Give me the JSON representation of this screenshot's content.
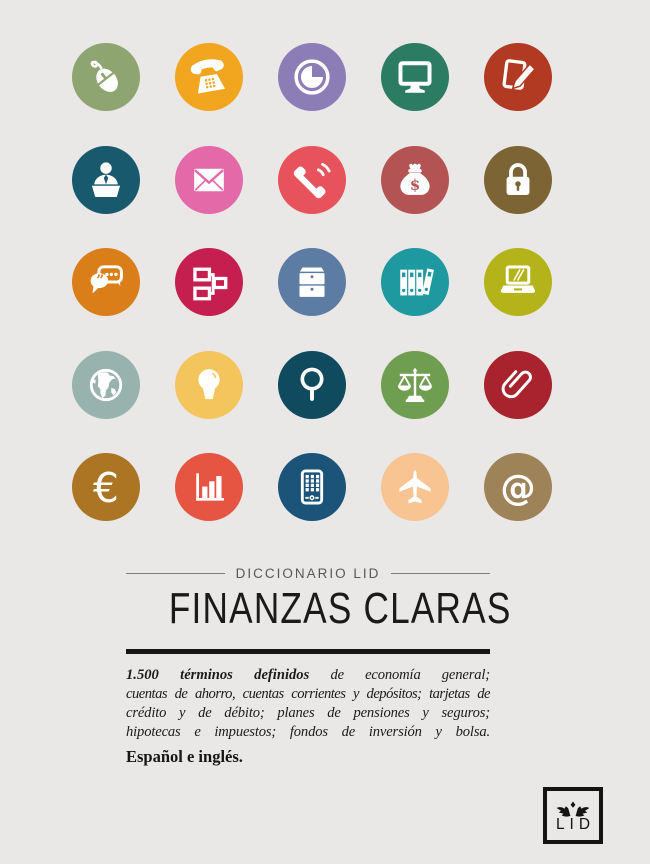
{
  "page": {
    "background_color": "#e9e8e6",
    "rule_color": "#161616",
    "title_color": "#1a1a1a"
  },
  "header": {
    "kicker": "DICCIONARIO LID",
    "title": "FINANZAS CLARAS"
  },
  "description": {
    "lead_bold": "1.500 términos definidos",
    "line1_rest": " de economía general;",
    "line2": "cuentas de ahorro, cuentas corrientes y depósitos; tarjetas de",
    "line3": "crédito y de débito; planes de pensiones y seguros;",
    "line4": "hipotecas e impuestos; fondos de inversión y bolsa.",
    "languages": "Español e inglés."
  },
  "publisher": {
    "logo_text": "LID"
  },
  "icon_grid": {
    "rows": [
      [
        {
          "name": "mouse-icon",
          "color": "#8ea571"
        },
        {
          "name": "telephone-icon",
          "color": "#f2a51e"
        },
        {
          "name": "clock-icon",
          "color": "#8d7db6"
        },
        {
          "name": "monitor-icon",
          "color": "#2c7b63"
        },
        {
          "name": "edit-document-icon",
          "color": "#b33a22"
        }
      ],
      [
        {
          "name": "speaker-podium-icon",
          "color": "#19596d"
        },
        {
          "name": "envelope-icon",
          "color": "#e369a9"
        },
        {
          "name": "ringing-phone-icon",
          "color": "#e7525c"
        },
        {
          "name": "money-bag-icon",
          "color": "#b35354"
        },
        {
          "name": "padlock-icon",
          "color": "#7d6435"
        }
      ],
      [
        {
          "name": "chat-bubbles-icon",
          "color": "#d97e18"
        },
        {
          "name": "org-chart-icon",
          "color": "#c51f50"
        },
        {
          "name": "drawers-icon",
          "color": "#5c7ca3"
        },
        {
          "name": "binders-icon",
          "color": "#1f99a0"
        },
        {
          "name": "laptop-icon",
          "color": "#b4b319"
        }
      ],
      [
        {
          "name": "globe-icon",
          "color": "#98b2ae"
        },
        {
          "name": "lightbulb-icon",
          "color": "#f4c55d"
        },
        {
          "name": "magnifier-icon",
          "color": "#0f4a5f"
        },
        {
          "name": "scales-icon",
          "color": "#709e50"
        },
        {
          "name": "paperclip-icon",
          "color": "#a8232e"
        }
      ],
      [
        {
          "name": "euro-icon",
          "color": "#ab7523"
        },
        {
          "name": "bar-chart-icon",
          "color": "#e65442"
        },
        {
          "name": "calculator-phone-icon",
          "color": "#1b5478"
        },
        {
          "name": "airplane-icon",
          "color": "#f7c492"
        },
        {
          "name": "at-sign-icon",
          "color": "#9e8359"
        }
      ]
    ]
  }
}
